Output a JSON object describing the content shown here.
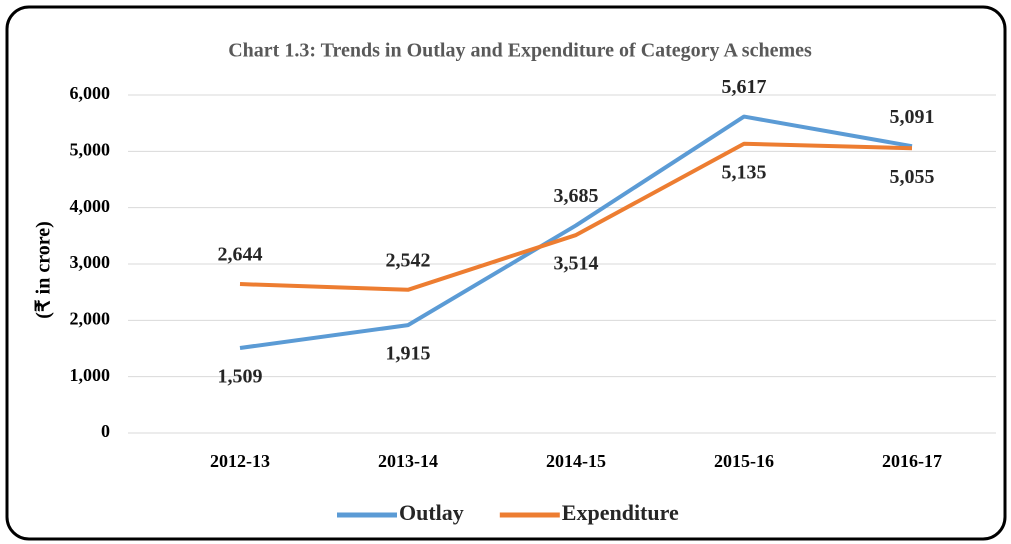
{
  "chart_data": {
    "type": "line",
    "title": "Chart 1.3: Trends in Outlay and Expenditure of Category A schemes",
    "y_label": "(₹ in crore)",
    "categories": [
      "2012-13",
      "2013-14",
      "2014-15",
      "2015-16",
      "2016-17"
    ],
    "series": [
      {
        "name": "Outlay",
        "color": "#5b9bd5",
        "values": [
          1509,
          1915,
          3685,
          5617,
          5091
        ],
        "value_labels": [
          "1,509",
          "1,915",
          "3,685",
          "5,617",
          "5,091"
        ]
      },
      {
        "name": "Expenditure",
        "color": "#ed7d31",
        "values": [
          2644,
          2542,
          3514,
          5135,
          5055
        ],
        "value_labels": [
          "2,644",
          "2,542",
          "3,514",
          "5,135",
          "5,055"
        ]
      }
    ],
    "ylim": [
      0,
      6000
    ],
    "yticks": [
      0,
      {
        "value": 1000,
        "label": "1,000"
      },
      {
        "value": 2000,
        "label": "2,000"
      },
      {
        "value": 3000,
        "label": "3,000"
      },
      {
        "value": 4000,
        "label": "4,000"
      },
      {
        "value": 5000,
        "label": "5,000"
      },
      {
        "value": 6000,
        "label": "6,000"
      }
    ],
    "grid": true,
    "legend": "bottom"
  }
}
